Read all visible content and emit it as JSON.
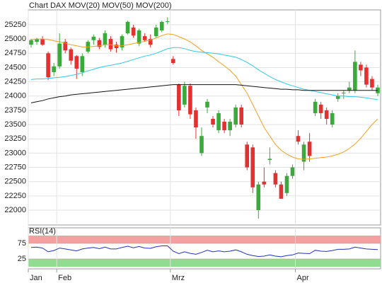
{
  "chart_data": [
    {
      "type": "candlestick",
      "title": "Chart DAX",
      "categories": [
        "Jan",
        null,
        null,
        null,
        null,
        "Feb",
        null,
        null,
        null,
        null,
        null,
        null,
        null,
        null,
        null,
        null,
        null,
        null,
        null,
        null,
        null,
        null,
        null,
        null,
        null,
        "Mrz",
        null,
        null,
        null,
        null,
        null,
        null,
        null,
        null,
        null,
        null,
        null,
        null,
        null,
        null,
        null,
        null,
        null,
        null,
        null,
        null,
        null,
        "Apr",
        null,
        null,
        null,
        null,
        null,
        null,
        null,
        null,
        null,
        null,
        null,
        null,
        null,
        null
      ],
      "open": [
        24900,
        24950,
        25000,
        24750,
        24420,
        24520,
        24950,
        24820,
        24700,
        24420,
        24780,
        24980,
        24980,
        24900,
        25000,
        24900,
        24850,
        25100,
        25200,
        24920,
        25050,
        25000,
        25050,
        25150,
        25300,
        24650,
        24200,
        23850,
        24180,
        23750,
        23000,
        23800,
        23600,
        23400,
        23550,
        23400,
        23500,
        23800,
        23150,
        23100,
        22000,
        22500,
        22880,
        22650,
        22450,
        22300,
        22600,
        23300,
        22850,
        23200,
        23700,
        23850,
        23750,
        23500,
        23950,
        24050,
        24100,
        24100,
        24550,
        24500,
        24300,
        24050
      ],
      "high": [
        25000,
        25020,
        25050,
        24780,
        24580,
        25100,
        25000,
        24850,
        24720,
        24750,
        24980,
        25080,
        25020,
        25150,
        25050,
        24950,
        25080,
        25320,
        25250,
        25180,
        25100,
        25080,
        25250,
        25320,
        25380,
        24700,
        24220,
        24250,
        24220,
        23800,
        23450,
        23950,
        23650,
        23750,
        23600,
        23600,
        23850,
        23850,
        23200,
        23150,
        22500,
        22750,
        23100,
        22700,
        22500,
        22650,
        22800,
        23400,
        23200,
        23350,
        23950,
        23900,
        23800,
        23750,
        24050,
        24100,
        24250,
        24800,
        24600,
        24550,
        24350,
        24200
      ],
      "low": [
        24850,
        24900,
        24880,
        24280,
        24350,
        24480,
        24750,
        24550,
        24300,
        24350,
        24750,
        24900,
        24820,
        24850,
        24780,
        24760,
        24800,
        25080,
        25020,
        24880,
        24950,
        24850,
        25020,
        25120,
        25260,
        24550,
        23650,
        23800,
        23600,
        23250,
        22950,
        23700,
        23450,
        23350,
        23350,
        23300,
        23450,
        23450,
        22700,
        22300,
        21850,
        22400,
        22800,
        22400,
        22200,
        22250,
        22550,
        23150,
        22700,
        22850,
        23650,
        23600,
        23500,
        23450,
        23900,
        23950,
        24050,
        24050,
        24350,
        24150,
        24100,
        24000
      ],
      "close": [
        24980,
        25000,
        24900,
        24330,
        24520,
        24920,
        24800,
        24620,
        24480,
        24700,
        24950,
        25040,
        24860,
        25100,
        24820,
        24840,
        25050,
        25300,
        25060,
        25150,
        24980,
        24900,
        25200,
        25300,
        25310,
        24580,
        23750,
        24180,
        23680,
        23450,
        23300,
        23900,
        23500,
        23700,
        23400,
        23550,
        23800,
        23500,
        22750,
        22400,
        22450,
        22450,
        22900,
        22450,
        22200,
        22600,
        22750,
        23200,
        23150,
        22950,
        23900,
        23700,
        23600,
        23700,
        24000,
        24060,
        24150,
        24600,
        24450,
        24200,
        24150,
        24150
      ],
      "up_color": "#3aaa3a",
      "down_color": "#e53030",
      "series": [
        {
          "name": "MOV(20)",
          "color": "#f0a020",
          "values": [
            24990,
            25000,
            25000,
            24990,
            24970,
            24950,
            24930,
            24900,
            24880,
            24860,
            24860,
            24870,
            24880,
            24900,
            24900,
            24880,
            24880,
            24900,
            24920,
            24940,
            24960,
            24980,
            25020,
            25060,
            25090,
            25080,
            25040,
            25000,
            24950,
            24880,
            24800,
            24740,
            24680,
            24600,
            24530,
            24450,
            24350,
            24200,
            24050,
            23850,
            23650,
            23450,
            23300,
            23150,
            23050,
            22980,
            22930,
            22900,
            22890,
            22900,
            22910,
            22920,
            22930,
            22950,
            22980,
            23020,
            23080,
            23160,
            23260,
            23380,
            23500,
            23600
          ]
        },
        {
          "name": "MOV(50)",
          "color": "#30c8e8",
          "values": [
            24290,
            24300,
            24300,
            24310,
            24320,
            24330,
            24340,
            24360,
            24380,
            24410,
            24440,
            24470,
            24500,
            24520,
            24540,
            24560,
            24580,
            24610,
            24640,
            24670,
            24700,
            24720,
            24750,
            24790,
            24830,
            24850,
            24850,
            24830,
            24800,
            24780,
            24770,
            24760,
            24750,
            24740,
            24720,
            24700,
            24680,
            24640,
            24590,
            24530,
            24460,
            24400,
            24340,
            24290,
            24250,
            24210,
            24180,
            24150,
            24120,
            24100,
            24080,
            24060,
            24040,
            24020,
            24000,
            24000,
            23990,
            23990,
            23980,
            23970,
            23950,
            23940
          ]
        },
        {
          "name": "MOV(200)",
          "color": "#111111",
          "values": [
            23880,
            23900,
            23920,
            23950,
            23970,
            23990,
            24000,
            24020,
            24030,
            24040,
            24050,
            24060,
            24070,
            24080,
            24090,
            24100,
            24110,
            24120,
            24130,
            24140,
            24150,
            24160,
            24170,
            24180,
            24190,
            24200,
            24200,
            24200,
            24200,
            24200,
            24200,
            24200,
            24200,
            24200,
            24200,
            24200,
            24200,
            24190,
            24180,
            24170,
            24160,
            24150,
            24140,
            24130,
            24120,
            24120,
            24110,
            24110,
            24100,
            24100,
            24100,
            24100,
            24100,
            24100,
            24100,
            24100,
            24100,
            24100,
            24100,
            24100,
            24100,
            24100
          ]
        }
      ],
      "ylim": [
        21740,
        25510
      ],
      "yticks": [
        22000,
        22250,
        22500,
        22750,
        23000,
        23250,
        23500,
        23750,
        24000,
        24250,
        24500,
        24750,
        25000,
        25250
      ],
      "grid": true
    },
    {
      "type": "line",
      "title": "RSI(14)",
      "color": "#2233bb",
      "values": [
        62,
        63,
        60,
        48,
        52,
        60,
        57,
        54,
        51,
        57,
        60,
        62,
        58,
        63,
        57,
        57,
        62,
        66,
        61,
        65,
        60,
        59,
        64,
        67,
        67,
        50,
        42,
        48,
        43,
        40,
        46,
        53,
        48,
        51,
        48,
        50,
        54,
        48,
        40,
        36,
        33,
        34,
        38,
        34,
        32,
        36,
        38,
        44,
        43,
        42,
        53,
        50,
        49,
        52,
        56,
        56,
        57,
        63,
        60,
        57,
        56,
        55
      ],
      "ylim": [
        0,
        100
      ],
      "yticks": [
        25,
        75
      ],
      "upper_band_color": "#f5a0a0",
      "lower_band_color": "#90dc90",
      "grid": true
    }
  ]
}
